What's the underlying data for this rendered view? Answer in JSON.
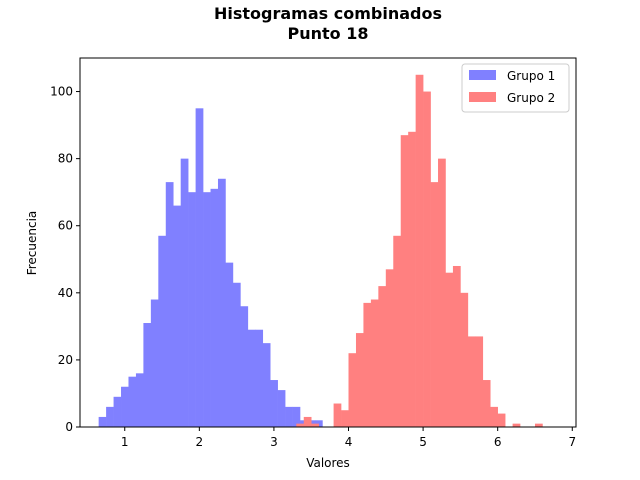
{
  "chart_data": {
    "type": "bar",
    "title": "Histogramas combinados",
    "subtitle": "Punto 18",
    "xlabel": "Valores",
    "ylabel": "Frecuencia",
    "xlim": [
      0.4,
      7.05
    ],
    "ylim": [
      0,
      110
    ],
    "xticks": [
      1,
      2,
      3,
      4,
      5,
      6,
      7
    ],
    "yticks": [
      0,
      20,
      40,
      60,
      80,
      100
    ],
    "grid": false,
    "legend_position": "top-right",
    "series": [
      {
        "name": "Grupo 1",
        "color": "#8080ff",
        "bin_edges": [
          0.65,
          0.75,
          0.85,
          0.95,
          1.05,
          1.15,
          1.25,
          1.35,
          1.45,
          1.55,
          1.65,
          1.75,
          1.85,
          1.95,
          2.05,
          2.15,
          2.25,
          2.35,
          2.45,
          2.55,
          2.65,
          2.75,
          2.85,
          2.95,
          3.05,
          3.15,
          3.25,
          3.35,
          3.45,
          3.55,
          3.65
        ],
        "counts": [
          3,
          6,
          9,
          12,
          15,
          16,
          31,
          38,
          57,
          73,
          66,
          80,
          70,
          95,
          70,
          71,
          74,
          49,
          43,
          36,
          29,
          29,
          25,
          14,
          11,
          6,
          6,
          2,
          2,
          2
        ]
      },
      {
        "name": "Grupo 2",
        "color": "#ff8080",
        "bin_edges": [
          3.3,
          3.4,
          3.5,
          3.6,
          3.7,
          3.8,
          3.9,
          4.0,
          4.1,
          4.2,
          4.3,
          4.4,
          4.5,
          4.6,
          4.7,
          4.8,
          4.9,
          5.0,
          5.1,
          5.2,
          5.3,
          5.4,
          5.5,
          5.6,
          5.7,
          5.8,
          5.9,
          6.0,
          6.1,
          6.2,
          6.3,
          6.4,
          6.5,
          6.6,
          6.7,
          6.8
        ],
        "counts": [
          1,
          3,
          1,
          0,
          0,
          7,
          5,
          22,
          28,
          37,
          38,
          42,
          47,
          57,
          87,
          88,
          105,
          100,
          73,
          80,
          46,
          48,
          40,
          27,
          27,
          14,
          6,
          4,
          0,
          1,
          0,
          0,
          1,
          0,
          0
        ]
      }
    ]
  }
}
